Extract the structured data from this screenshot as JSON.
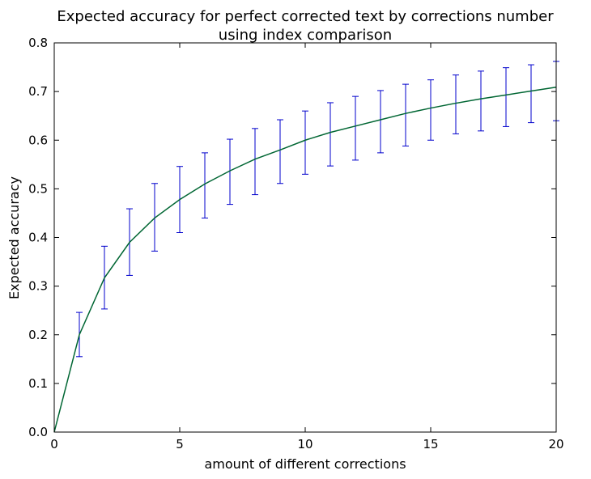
{
  "chart_data": {
    "type": "line",
    "title": [
      "Expected accuracy for perfect corrected text by corrections number",
      "using index comparison"
    ],
    "xlabel": "amount of different corrections",
    "ylabel": "Expected accuracy",
    "xlim": [
      0,
      20
    ],
    "ylim": [
      0.0,
      0.8
    ],
    "xticks": [
      "0",
      "5",
      "10",
      "15",
      "20"
    ],
    "yticks": [
      "0.0",
      "0.1",
      "0.2",
      "0.3",
      "0.4",
      "0.5",
      "0.6",
      "0.7",
      "0.8"
    ],
    "grid": false,
    "series": [
      {
        "color": "#006633",
        "x": [
          0,
          1,
          2,
          3,
          4,
          5,
          6,
          7,
          8,
          9,
          10,
          11,
          12,
          13,
          14,
          15,
          16,
          17,
          18,
          19,
          20
        ],
        "y": [
          0.0,
          0.2,
          0.317,
          0.39,
          0.44,
          0.478,
          0.51,
          0.537,
          0.561,
          0.58,
          0.6,
          0.616,
          0.629,
          0.642,
          0.655,
          0.666,
          0.676,
          0.685,
          0.693,
          0.701,
          0.709
        ]
      }
    ],
    "errorbars": {
      "color": "#0000cc",
      "x": [
        1,
        2,
        3,
        4,
        5,
        6,
        7,
        8,
        9,
        10,
        11,
        12,
        13,
        14,
        15,
        16,
        17,
        18,
        19,
        20
      ],
      "lower": [
        0.155,
        0.253,
        0.322,
        0.372,
        0.41,
        0.44,
        0.468,
        0.488,
        0.511,
        0.53,
        0.547,
        0.559,
        0.574,
        0.588,
        0.6,
        0.613,
        0.619,
        0.628,
        0.636,
        0.64
      ],
      "upper": [
        0.246,
        0.382,
        0.459,
        0.511,
        0.546,
        0.574,
        0.602,
        0.624,
        0.642,
        0.66,
        0.677,
        0.69,
        0.702,
        0.715,
        0.724,
        0.734,
        0.742,
        0.749,
        0.755,
        0.762
      ]
    }
  }
}
